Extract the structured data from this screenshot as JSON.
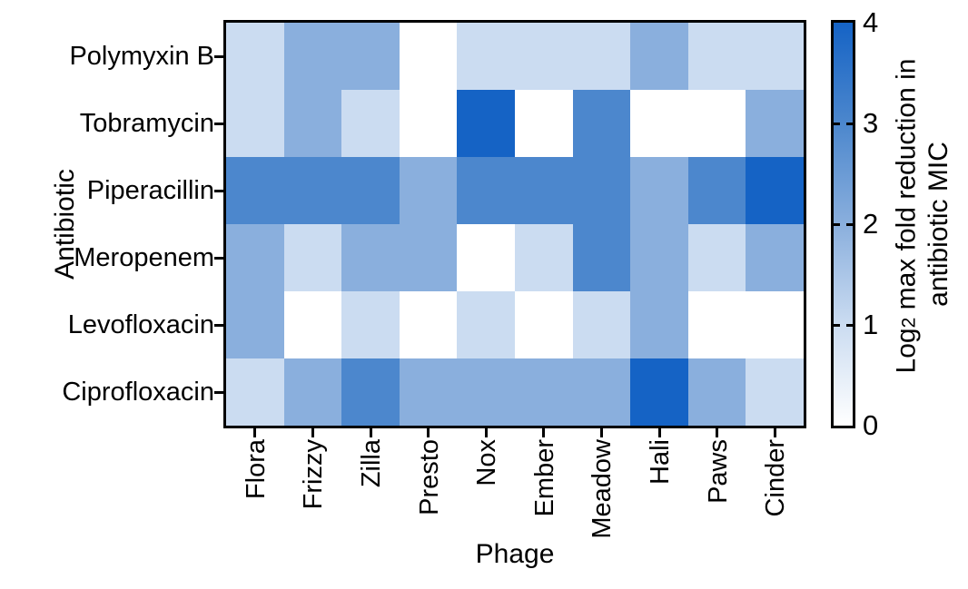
{
  "figure": {
    "background": "#ffffff",
    "xlabel": "Phage",
    "ylabel": "Antibiotic",
    "colorbar_label": {
      "line1_pre": "Log",
      "line1_sub": "2",
      "line1_post": " max fold reduction in",
      "line2": "antibiotic MIC"
    }
  },
  "chart_data": {
    "type": "heatmap",
    "title": "",
    "xlabel": "Phage",
    "ylabel": "Antibiotic",
    "categories_x": [
      "Flora",
      "Frizzy",
      "Zilla",
      "Presto",
      "Nox",
      "Ember",
      "Meadow",
      "Hali",
      "Paws",
      "Cinder"
    ],
    "categories_y": [
      "Polymyxin B",
      "Tobramycin",
      "Piperacillin",
      "Meropenem",
      "Levofloxacin",
      "Ciprofloxacin"
    ],
    "values": [
      [
        1,
        2,
        2,
        0,
        1,
        1,
        1,
        2,
        1,
        1
      ],
      [
        1,
        2,
        1,
        0,
        4,
        0,
        3,
        0,
        0,
        2
      ],
      [
        3,
        3,
        3,
        2,
        3,
        3,
        3,
        2,
        3,
        4
      ],
      [
        2,
        1,
        2,
        2,
        0,
        1,
        3,
        2,
        1,
        2
      ],
      [
        2,
        0,
        1,
        0,
        1,
        0,
        1,
        2,
        0,
        0
      ],
      [
        1,
        2,
        3,
        2,
        2,
        2,
        2,
        4,
        2,
        1
      ]
    ],
    "colorbar": {
      "label": "Log2 max fold reduction in antibiotic MIC",
      "range": [
        0,
        4
      ],
      "tick_values": [
        4,
        3,
        2,
        1,
        0
      ],
      "tick_labels": [
        "4",
        "3",
        "2",
        "1",
        "0"
      ],
      "inner_tick_values": [
        1,
        2,
        3
      ]
    },
    "value_colors": {
      "0": "#ffffff",
      "1": "#cbdcf1",
      "2": "#8aafdd",
      "3": "#4c87cd",
      "4": "#1563c5"
    },
    "grid": false,
    "legend": "colorbar-right"
  }
}
